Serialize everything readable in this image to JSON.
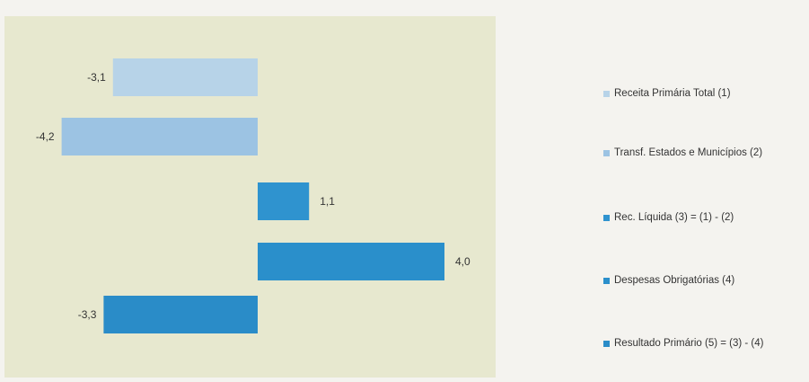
{
  "chart_data": {
    "type": "bar",
    "orientation": "horizontal",
    "categories": [
      "Receita Primária Total (1)",
      "Transf. Estados e Municípios (2)",
      "Rec. Líquida (3) = (1) - (2)",
      "Despesas Obrigatórias (4)",
      "Resultado Primário (5) = (3) - (4)"
    ],
    "values": [
      -3.1,
      -4.2,
      1.1,
      4.0,
      -3.3
    ],
    "value_labels": [
      "-3,1",
      "-4,2",
      "1,1",
      "4,0",
      "-3,3"
    ],
    "colors": [
      "#b7d3e8",
      "#9cc3e3",
      "#2f93cf",
      "#2a8fcb",
      "#2a8cc8"
    ],
    "xlim": [
      -4.5,
      4.5
    ],
    "grid": false,
    "legend_position": "right",
    "title": "",
    "xlabel": "",
    "ylabel": ""
  },
  "legend": {
    "items": [
      {
        "label": "Receita Primária Total (1)",
        "color": "#b7d3e8"
      },
      {
        "label": "Transf. Estados e Municípios (2)",
        "color": "#9cc3e3"
      },
      {
        "label": "Rec. Líquida (3) = (1) - (2)",
        "color": "#2f93cf"
      },
      {
        "label": "Despesas Obrigatórias (4)",
        "color": "#2a8fcb"
      },
      {
        "label": "Resultado Primário (5) = (3) - (4)",
        "color": "#2a8cc8"
      }
    ]
  }
}
